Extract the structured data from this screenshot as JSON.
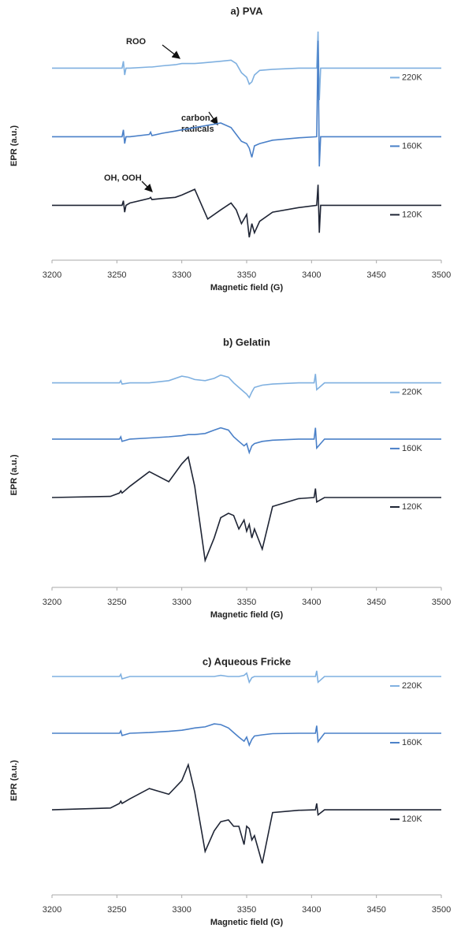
{
  "chart_data": [
    {
      "type": "line",
      "title": "a) PVA",
      "x_label": "Magnetic field (G)",
      "y_label": "EPR (a.u.)",
      "xlim": [
        3200,
        3500
      ],
      "xticks": [
        3200,
        3250,
        3300,
        3350,
        3400,
        3450,
        3500
      ],
      "ylim": [
        0,
        100
      ],
      "annotations": [
        {
          "lines": [
            "ROO"
          ]
        },
        {
          "lines": [
            "carbon",
            "radicals"
          ]
        },
        {
          "lines": [
            "OH, OOH"
          ]
        }
      ],
      "x": [
        3200,
        3250,
        3254,
        3255,
        3256,
        3257,
        3260,
        3275,
        3276,
        3277,
        3285,
        3295,
        3300,
        3310,
        3320,
        3330,
        3338,
        3342,
        3346,
        3350,
        3352,
        3354,
        3356,
        3360,
        3370,
        3390,
        3404,
        3405,
        3406,
        3407,
        3410,
        3450,
        3500
      ],
      "series": [
        {
          "name": "220K",
          "color": "#7fb0e0",
          "values": [
            84,
            84,
            84,
            87,
            81,
            84,
            84,
            84.5,
            84.5,
            84.5,
            85,
            85.5,
            86,
            86,
            86.5,
            87,
            87.5,
            86,
            82,
            80,
            77,
            78,
            81,
            83,
            83.5,
            84,
            84,
            100,
            70,
            84,
            84,
            84,
            84
          ]
        },
        {
          "name": "160K",
          "color": "#4a80c8",
          "values": [
            54,
            54,
            54,
            57,
            51,
            54,
            54,
            55,
            56,
            54.5,
            55.5,
            56.5,
            57,
            58,
            59,
            60,
            58,
            55,
            52,
            51,
            49,
            45,
            50,
            51,
            52.5,
            53.5,
            54,
            96,
            41,
            54,
            54,
            54,
            54
          ]
        },
        {
          "name": "120K",
          "color": "#1f2535",
          "values": [
            24,
            24,
            24,
            26,
            21,
            24,
            25,
            27,
            27.5,
            26.5,
            27,
            27.5,
            28.5,
            31,
            18,
            22,
            25,
            22,
            16,
            20,
            10,
            16,
            12,
            17,
            21,
            23,
            24,
            33,
            12,
            24,
            24,
            24,
            24
          ]
        }
      ]
    },
    {
      "type": "line",
      "title": "b) Gelatin",
      "x_label": "Magnetic field (G)",
      "y_label": "EPR (a.u.)",
      "xlim": [
        3200,
        3500
      ],
      "xticks": [
        3200,
        3250,
        3300,
        3350,
        3400,
        3450,
        3500
      ],
      "ylim": [
        0,
        100
      ],
      "x": [
        3200,
        3245,
        3252,
        3253,
        3254,
        3260,
        3275,
        3290,
        3300,
        3305,
        3310,
        3318,
        3325,
        3330,
        3336,
        3340,
        3344,
        3348,
        3350,
        3352,
        3354,
        3356,
        3362,
        3370,
        3390,
        3402,
        3403,
        3404,
        3410,
        3450,
        3500
      ],
      "series": [
        {
          "name": "220K",
          "color": "#7fb0e0",
          "values": [
            91,
            91,
            91,
            92,
            90.5,
            91,
            91,
            92,
            94,
            93.5,
            92.5,
            92,
            93,
            94.5,
            93.5,
            91,
            89,
            87,
            86,
            84.5,
            87,
            89,
            90,
            90.5,
            91,
            91,
            95,
            88,
            91,
            91,
            91
          ]
        },
        {
          "name": "160K",
          "color": "#4a80c8",
          "values": [
            66,
            66,
            66,
            67,
            65,
            66,
            66.5,
            67,
            67.5,
            68,
            68,
            68.5,
            70,
            71,
            70,
            67,
            65,
            63,
            64,
            60,
            63,
            64,
            65,
            65.5,
            66,
            66,
            71,
            62,
            66,
            66,
            66
          ]
        },
        {
          "name": "120K",
          "color": "#1f2535",
          "values": [
            40,
            40.5,
            42,
            43,
            42,
            45,
            51.5,
            47,
            55,
            58,
            45,
            12,
            22,
            31,
            33,
            32,
            26,
            30,
            25,
            28,
            22,
            26,
            17,
            36,
            39.5,
            40,
            44,
            38,
            40,
            40,
            40
          ]
        }
      ]
    },
    {
      "type": "line",
      "title": "c) Aqueous Fricke",
      "x_label": "Magnetic field (G)",
      "y_label": "EPR (a.u.)",
      "xlim": [
        3200,
        3500
      ],
      "xticks": [
        3200,
        3250,
        3300,
        3350,
        3400,
        3450,
        3500
      ],
      "ylim": [
        0,
        100
      ],
      "x": [
        3200,
        3245,
        3252,
        3253,
        3254,
        3260,
        3275,
        3290,
        3300,
        3305,
        3310,
        3318,
        3325,
        3330,
        3336,
        3340,
        3344,
        3348,
        3350,
        3352,
        3354,
        3356,
        3362,
        3370,
        3390,
        3403,
        3404,
        3405,
        3410,
        3450,
        3500
      ],
      "series": [
        {
          "name": "220K",
          "color": "#7fb0e0",
          "values": [
            95.5,
            95.5,
            95.5,
            96.5,
            94.5,
            95.5,
            95.5,
            95.5,
            95.5,
            95.5,
            95.5,
            95.5,
            95.5,
            96,
            95.5,
            95.5,
            95.5,
            96,
            97,
            93,
            95,
            95.5,
            95.5,
            95.5,
            95.5,
            95.5,
            98,
            93,
            95.5,
            95.5,
            95.5
          ]
        },
        {
          "name": "160K",
          "color": "#4a80c8",
          "values": [
            70.7,
            70.7,
            70.7,
            71.7,
            69.7,
            70.7,
            71,
            71.5,
            72,
            72.5,
            73,
            73.5,
            74.8,
            74.5,
            73,
            71,
            69,
            67.2,
            69,
            65.5,
            68,
            69.5,
            70,
            70.5,
            70.7,
            70.7,
            74,
            67,
            70.7,
            70.7,
            70.7
          ]
        },
        {
          "name": "120K",
          "color": "#1f2535",
          "values": [
            37.2,
            38,
            40,
            41,
            40,
            42,
            46.5,
            44,
            50,
            56.9,
            45,
            19,
            28,
            32,
            32.8,
            30,
            30,
            22,
            30,
            29,
            24,
            25.9,
            13.8,
            36,
            37,
            37.2,
            40,
            35,
            37.2,
            37.2,
            37.2
          ]
        }
      ]
    }
  ]
}
